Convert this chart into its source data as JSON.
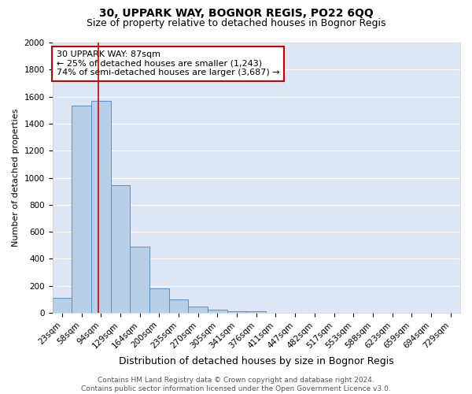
{
  "title": "30, UPPARK WAY, BOGNOR REGIS, PO22 6QQ",
  "subtitle": "Size of property relative to detached houses in Bognor Regis",
  "xlabel": "Distribution of detached houses by size in Bognor Regis",
  "ylabel": "Number of detached properties",
  "bar_labels": [
    "23sqm",
    "58sqm",
    "94sqm",
    "129sqm",
    "164sqm",
    "200sqm",
    "235sqm",
    "270sqm",
    "305sqm",
    "341sqm",
    "376sqm",
    "411sqm",
    "447sqm",
    "482sqm",
    "517sqm",
    "553sqm",
    "588sqm",
    "623sqm",
    "659sqm",
    "694sqm",
    "729sqm"
  ],
  "bar_values": [
    110,
    1535,
    1570,
    945,
    490,
    180,
    100,
    45,
    25,
    15,
    15,
    0,
    0,
    0,
    0,
    0,
    0,
    0,
    0,
    0,
    0
  ],
  "bar_color": "#b8cfe8",
  "bar_edge_color": "#5b8ec4",
  "background_color": "#dce6f5",
  "grid_color": "#ffffff",
  "vline_color": "#cc0000",
  "vline_x": 1.85,
  "annotation_text": "30 UPPARK WAY: 87sqm\n← 25% of detached houses are smaller (1,243)\n74% of semi-detached houses are larger (3,687) →",
  "annotation_box_color": "#ffffff",
  "annotation_box_edge": "#cc0000",
  "ylim": [
    0,
    2000
  ],
  "yticks": [
    0,
    200,
    400,
    600,
    800,
    1000,
    1200,
    1400,
    1600,
    1800,
    2000
  ],
  "footer_text": "Contains HM Land Registry data © Crown copyright and database right 2024.\nContains public sector information licensed under the Open Government Licence v3.0.",
  "title_fontsize": 10,
  "subtitle_fontsize": 9,
  "xlabel_fontsize": 9,
  "ylabel_fontsize": 8,
  "tick_fontsize": 7.5,
  "annotation_fontsize": 8,
  "footer_fontsize": 6.5
}
